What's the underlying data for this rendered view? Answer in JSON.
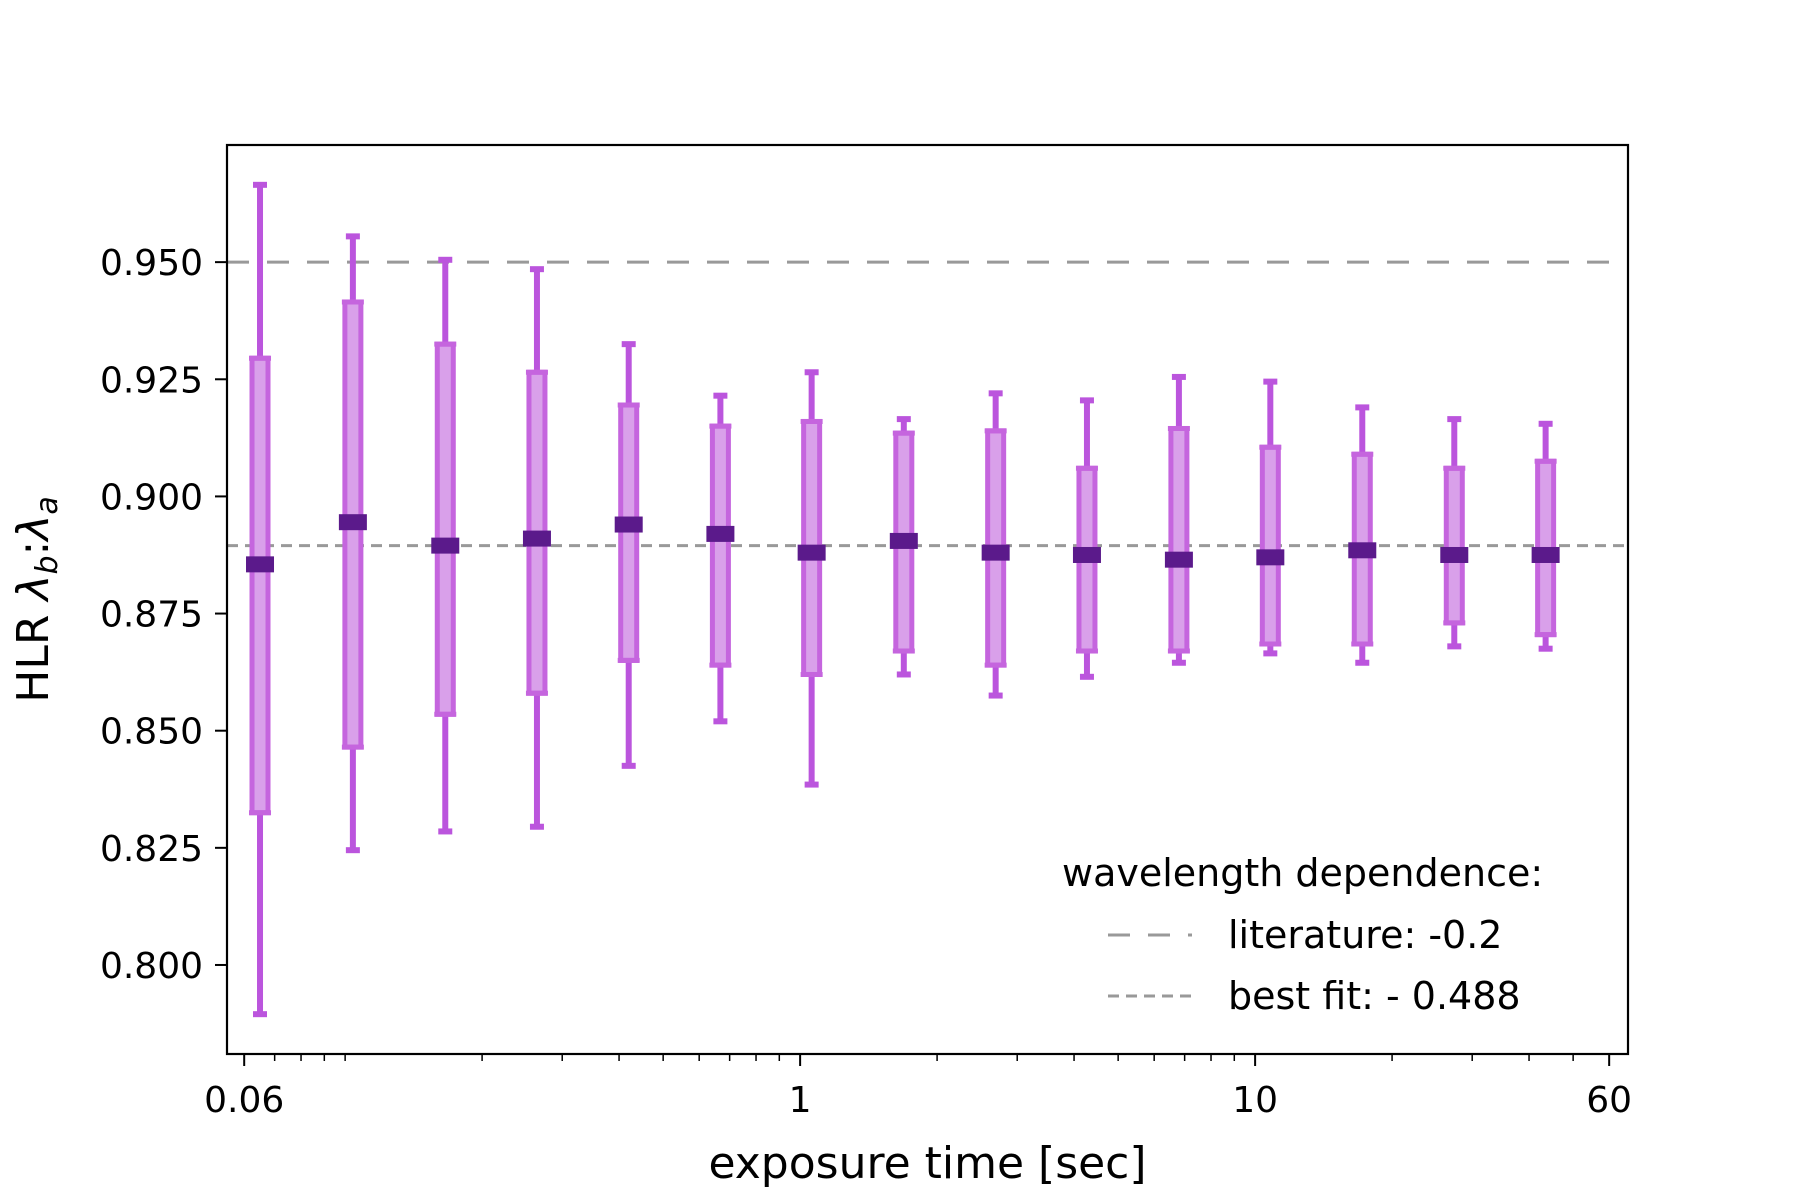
{
  "chart_data": {
    "type": "scatter",
    "title": "",
    "xlabel": "exposure time [sec]",
    "ylabel_prefix": "HLR ",
    "ylabel_b": "λ",
    "ylabel_b_sub": "b",
    "ylabel_sep": ":",
    "ylabel_a": "λ",
    "ylabel_a_sub": "a",
    "x_scale": "log",
    "xlim": [
      0.055,
      66
    ],
    "ylim": [
      0.781,
      0.975
    ],
    "x_ticks": [
      {
        "value": 0.06,
        "label": "0.06"
      },
      {
        "value": 1,
        "label": "1"
      },
      {
        "value": 10,
        "label": "10"
      },
      {
        "value": 60,
        "label": "60"
      }
    ],
    "y_ticks": [
      {
        "value": 0.8,
        "label": "0.800"
      },
      {
        "value": 0.825,
        "label": "0.825"
      },
      {
        "value": 0.85,
        "label": "0.850"
      },
      {
        "value": 0.875,
        "label": "0.875"
      },
      {
        "value": 0.9,
        "label": "0.900"
      },
      {
        "value": 0.925,
        "label": "0.925"
      },
      {
        "value": 0.95,
        "label": "0.950"
      }
    ],
    "colors": {
      "marker": "#5b1a8b",
      "inner_bar": "#c565de",
      "whisker": "#bb55dd",
      "reference": "#999999"
    },
    "points": [
      {
        "x": 0.065,
        "y": 0.8855,
        "inner": [
          0.8325,
          0.9295
        ],
        "outer": [
          0.7895,
          0.9665
        ]
      },
      {
        "x": 0.104,
        "y": 0.8945,
        "inner": [
          0.8465,
          0.9415
        ],
        "outer": [
          0.8245,
          0.9555
        ]
      },
      {
        "x": 0.166,
        "y": 0.8895,
        "inner": [
          0.8535,
          0.9325
        ],
        "outer": [
          0.8285,
          0.9505
        ]
      },
      {
        "x": 0.264,
        "y": 0.891,
        "inner": [
          0.858,
          0.9265
        ],
        "outer": [
          0.8295,
          0.9485
        ]
      },
      {
        "x": 0.42,
        "y": 0.894,
        "inner": [
          0.865,
          0.9195
        ],
        "outer": [
          0.8425,
          0.9325
        ]
      },
      {
        "x": 0.668,
        "y": 0.892,
        "inner": [
          0.864,
          0.915
        ],
        "outer": [
          0.852,
          0.9215
        ]
      },
      {
        "x": 1.06,
        "y": 0.888,
        "inner": [
          0.862,
          0.916
        ],
        "outer": [
          0.8385,
          0.9265
        ]
      },
      {
        "x": 1.69,
        "y": 0.8905,
        "inner": [
          0.867,
          0.9135
        ],
        "outer": [
          0.862,
          0.9165
        ]
      },
      {
        "x": 2.69,
        "y": 0.888,
        "inner": [
          0.864,
          0.914
        ],
        "outer": [
          0.8575,
          0.922
        ]
      },
      {
        "x": 4.27,
        "y": 0.8875,
        "inner": [
          0.867,
          0.906
        ],
        "outer": [
          0.8615,
          0.9205
        ]
      },
      {
        "x": 6.8,
        "y": 0.8865,
        "inner": [
          0.867,
          0.9145
        ],
        "outer": [
          0.8645,
          0.9255
        ]
      },
      {
        "x": 10.8,
        "y": 0.887,
        "inner": [
          0.8685,
          0.9105
        ],
        "outer": [
          0.8665,
          0.9245
        ]
      },
      {
        "x": 17.2,
        "y": 0.8885,
        "inner": [
          0.8685,
          0.909
        ],
        "outer": [
          0.8645,
          0.919
        ]
      },
      {
        "x": 27.4,
        "y": 0.8875,
        "inner": [
          0.873,
          0.906
        ],
        "outer": [
          0.868,
          0.9165
        ]
      },
      {
        "x": 43.5,
        "y": 0.8875,
        "inner": [
          0.8705,
          0.9075
        ],
        "outer": [
          0.8675,
          0.9155
        ]
      }
    ],
    "reference_lines": [
      {
        "name": "literature: -0.2",
        "y": 0.95,
        "style": "long-dash"
      },
      {
        "name": "best fit: - 0.488",
        "y": 0.8895,
        "style": "short-dash"
      }
    ],
    "legend": {
      "title": "wavelength dependence:",
      "placement": "lower-right"
    }
  }
}
